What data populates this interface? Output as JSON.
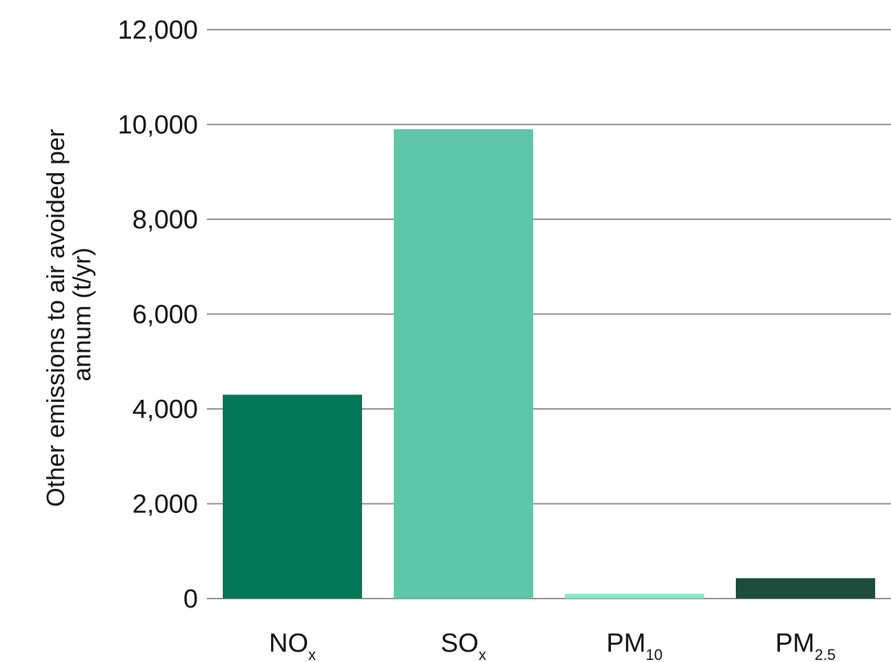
{
  "chart_data": {
    "type": "bar",
    "categories": [
      {
        "label": "NO",
        "sub": "x"
      },
      {
        "label": "SO",
        "sub": "x"
      },
      {
        "label": "PM",
        "sub": "10"
      },
      {
        "label": "PM",
        "sub": "2.5"
      }
    ],
    "values": [
      4300,
      9900,
      100,
      430
    ],
    "colors": [
      "#037858",
      "#5fc6a6",
      "#88e6c8",
      "#1d4b3c"
    ],
    "ylabel_lines": [
      "Other emissions to air avoided per",
      "annum (t/yr)"
    ],
    "ylim": [
      0,
      12000
    ],
    "yticks": [
      0,
      2000,
      4000,
      6000,
      8000,
      10000,
      12000
    ],
    "ytick_labels": [
      "0",
      "2,000",
      "4,000",
      "6,000",
      "8,000",
      "10,000",
      "12,000"
    ],
    "grid": true,
    "legend": "none"
  }
}
